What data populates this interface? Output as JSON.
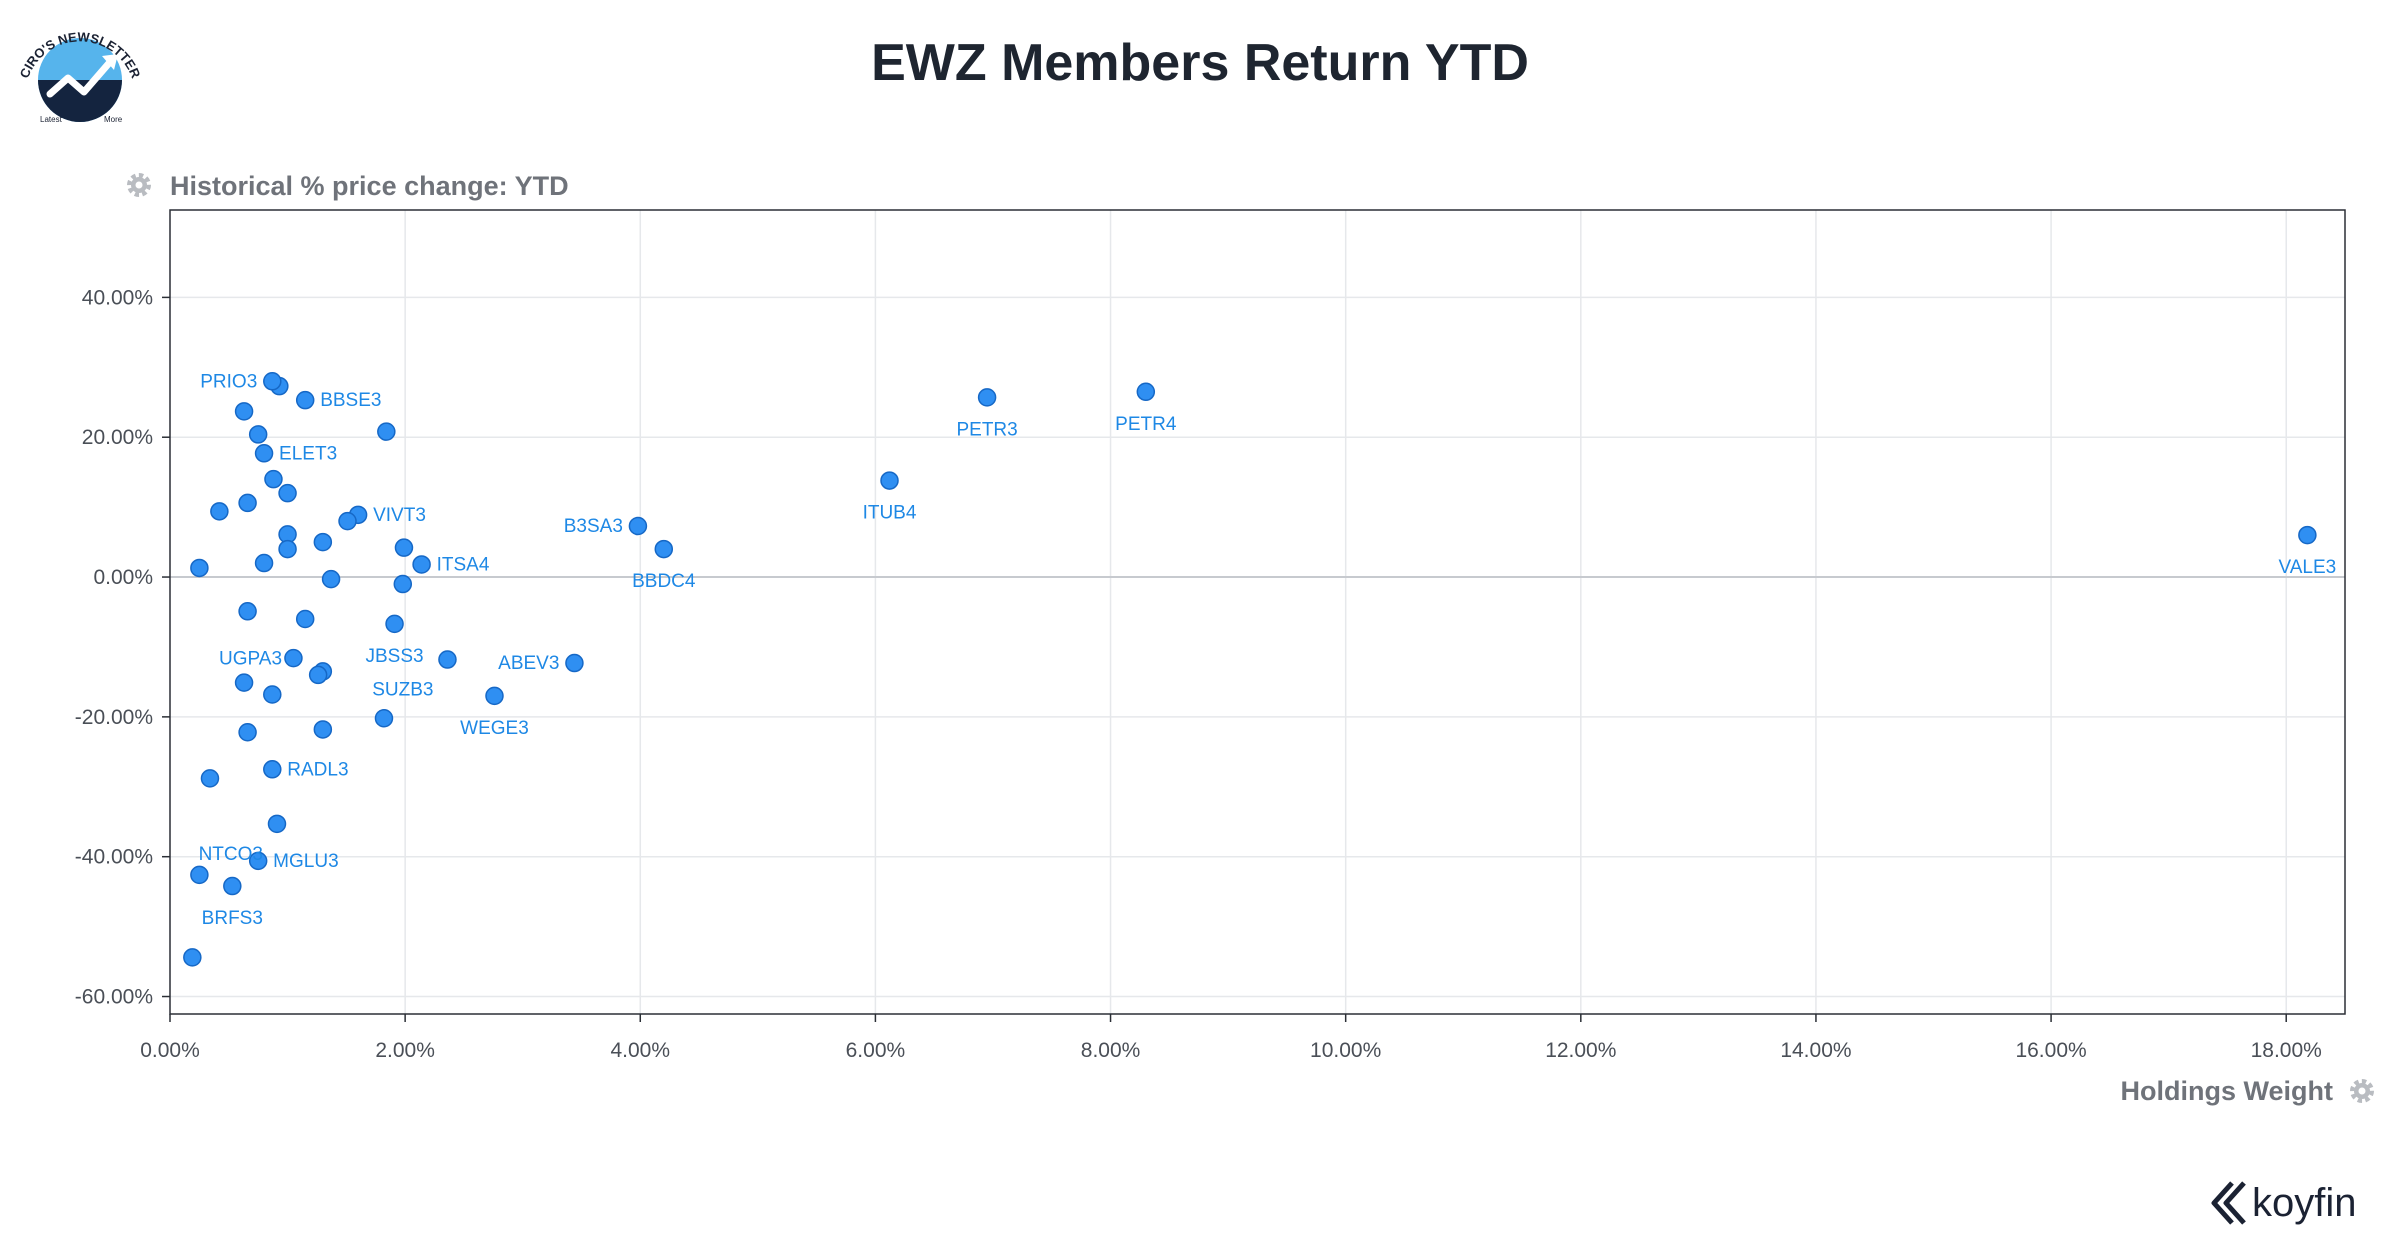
{
  "newsletter_logo": {
    "text": "CIRO'S NEWSLETTER",
    "small_text_left": "Latest",
    "small_text_right": "More"
  },
  "brand": {
    "name": "koyfin"
  },
  "icons": {
    "y_axis_settings": "gear-icon",
    "x_axis_settings": "gear-icon",
    "brand_mark": "koyfin-logo-icon"
  },
  "colors": {
    "point": "#2f8ff2",
    "point_stroke": "#1668c6",
    "label": "#1e88e5",
    "grid": "#e6e8eb",
    "zero_line": "#c7cacf"
  },
  "chart_data": {
    "type": "scatter",
    "title": "EWZ Members Return YTD",
    "xlabel": "Holdings Weight",
    "ylabel": "Historical % price change: YTD",
    "xlim": [
      0,
      18.5
    ],
    "ylim": [
      -62.5,
      52.5
    ],
    "x_ticks": [
      0,
      2,
      4,
      6,
      8,
      10,
      12,
      14,
      16,
      18
    ],
    "y_ticks": [
      -60,
      -40,
      -20,
      0,
      20,
      40
    ],
    "x_tick_labels": [
      "0.00%",
      "2.00%",
      "4.00%",
      "6.00%",
      "8.00%",
      "10.00%",
      "12.00%",
      "14.00%",
      "16.00%",
      "18.00%"
    ],
    "y_tick_labels": [
      "-60.00%",
      "-40.00%",
      "-20.00%",
      "0.00%",
      "20.00%",
      "40.00%"
    ],
    "grid": true,
    "points": [
      {
        "x": 18.18,
        "y": 6.0,
        "label": "VALE3",
        "label_pos": "below"
      },
      {
        "x": 8.3,
        "y": 26.5,
        "label": "PETR4",
        "label_pos": "below"
      },
      {
        "x": 6.95,
        "y": 25.7,
        "label": "PETR3",
        "label_pos": "below"
      },
      {
        "x": 6.12,
        "y": 13.8,
        "label": "ITUB4",
        "label_pos": "below"
      },
      {
        "x": 4.2,
        "y": 4.0,
        "label": "BBDC4",
        "label_pos": "below"
      },
      {
        "x": 3.98,
        "y": 7.3,
        "label": "B3SA3",
        "label_pos": "left"
      },
      {
        "x": 3.44,
        "y": -12.3,
        "label": "ABEV3",
        "label_pos": "left"
      },
      {
        "x": 2.76,
        "y": -17.0,
        "label": "WEGE3",
        "label_pos": "below"
      },
      {
        "x": 2.36,
        "y": -11.8,
        "label": "SUZB3",
        "label_pos": "below-left"
      },
      {
        "x": 2.14,
        "y": 1.8,
        "label": "ITSA4",
        "label_pos": "right"
      },
      {
        "x": 1.99,
        "y": 4.2,
        "label": "",
        "label_pos": "none"
      },
      {
        "x": 1.98,
        "y": -1.0,
        "label": "",
        "label_pos": "none"
      },
      {
        "x": 1.91,
        "y": -6.7,
        "label": "JBSS3",
        "label_pos": "below"
      },
      {
        "x": 1.84,
        "y": 20.8,
        "label": "",
        "label_pos": "none"
      },
      {
        "x": 1.82,
        "y": -20.2,
        "label": "",
        "label_pos": "none"
      },
      {
        "x": 1.6,
        "y": 8.9,
        "label": "VIVT3",
        "label_pos": "right"
      },
      {
        "x": 1.51,
        "y": 8.0,
        "label": "",
        "label_pos": "none"
      },
      {
        "x": 1.37,
        "y": -0.3,
        "label": "",
        "label_pos": "none"
      },
      {
        "x": 1.3,
        "y": 5.0,
        "label": "",
        "label_pos": "none"
      },
      {
        "x": 1.3,
        "y": -13.5,
        "label": "",
        "label_pos": "none"
      },
      {
        "x": 1.3,
        "y": -21.8,
        "label": "",
        "label_pos": "none"
      },
      {
        "x": 1.26,
        "y": -14.0,
        "label": "",
        "label_pos": "none"
      },
      {
        "x": 1.15,
        "y": 25.3,
        "label": "BBSE3",
        "label_pos": "right"
      },
      {
        "x": 1.15,
        "y": -6.0,
        "label": "",
        "label_pos": "none"
      },
      {
        "x": 1.05,
        "y": -11.6,
        "label": "",
        "label_pos": "none"
      },
      {
        "x": 1.0,
        "y": 12.0,
        "label": "",
        "label_pos": "none"
      },
      {
        "x": 1.0,
        "y": 6.1,
        "label": "",
        "label_pos": "none"
      },
      {
        "x": 1.0,
        "y": 4.0,
        "label": "",
        "label_pos": "none"
      },
      {
        "x": 0.93,
        "y": 27.3,
        "label": "",
        "label_pos": "none"
      },
      {
        "x": 0.91,
        "y": -35.3,
        "label": "NTCO3",
        "label_pos": "below-left"
      },
      {
        "x": 0.88,
        "y": 14.0,
        "label": "",
        "label_pos": "none"
      },
      {
        "x": 0.87,
        "y": 28.0,
        "label": "PRIO3",
        "label_pos": "left"
      },
      {
        "x": 0.87,
        "y": -16.8,
        "label": "",
        "label_pos": "none"
      },
      {
        "x": 0.87,
        "y": -27.5,
        "label": "RADL3",
        "label_pos": "right"
      },
      {
        "x": 0.8,
        "y": 17.7,
        "label": "ELET3",
        "label_pos": "right"
      },
      {
        "x": 0.8,
        "y": 2.0,
        "label": "",
        "label_pos": "none"
      },
      {
        "x": 0.75,
        "y": 20.4,
        "label": "",
        "label_pos": "none"
      },
      {
        "x": 0.75,
        "y": -40.6,
        "label": "MGLU3",
        "label_pos": "right"
      },
      {
        "x": 0.66,
        "y": 10.6,
        "label": "",
        "label_pos": "none"
      },
      {
        "x": 0.66,
        "y": -4.9,
        "label": "",
        "label_pos": "none"
      },
      {
        "x": 0.66,
        "y": -22.2,
        "label": "",
        "label_pos": "none"
      },
      {
        "x": 0.63,
        "y": 23.7,
        "label": "",
        "label_pos": "none"
      },
      {
        "x": 0.63,
        "y": -15.1,
        "label": "UGPA3",
        "label_pos": "above-left"
      },
      {
        "x": 0.53,
        "y": -44.2,
        "label": "BRFS3",
        "label_pos": "below"
      },
      {
        "x": 0.42,
        "y": 9.4,
        "label": "",
        "label_pos": "none"
      },
      {
        "x": 0.34,
        "y": -28.8,
        "label": "",
        "label_pos": "none"
      },
      {
        "x": 0.25,
        "y": 1.3,
        "label": "",
        "label_pos": "none"
      },
      {
        "x": 0.25,
        "y": -42.6,
        "label": "",
        "label_pos": "none"
      },
      {
        "x": 0.19,
        "y": -54.4,
        "label": "",
        "label_pos": "none"
      }
    ]
  }
}
